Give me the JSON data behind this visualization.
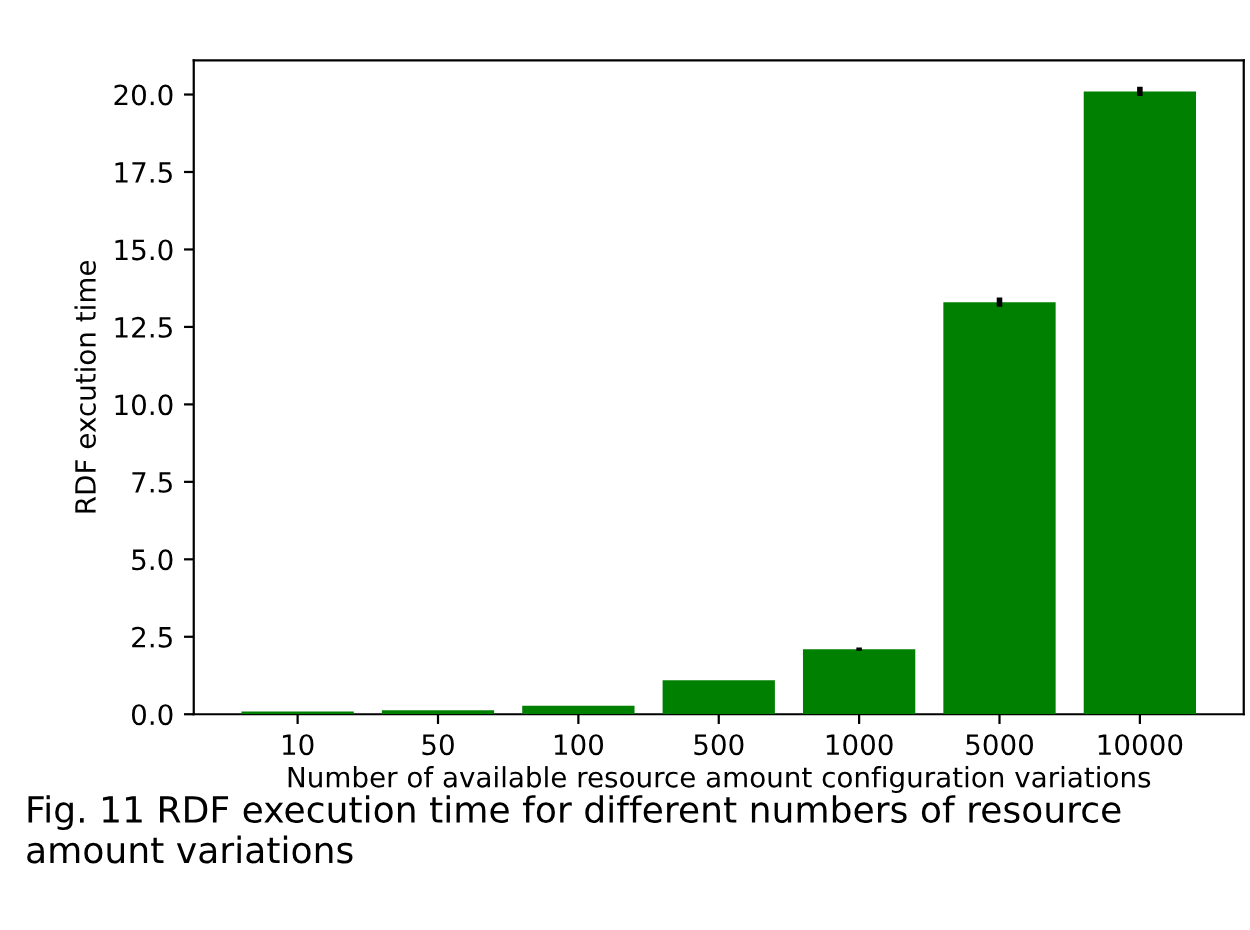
{
  "chart_data": {
    "type": "bar",
    "xlabel": "Number of available resource amount configuration variations",
    "ylabel": "RDF excution time",
    "categories": [
      "10",
      "50",
      "100",
      "500",
      "1000",
      "5000",
      "10000"
    ],
    "values": [
      0.09,
      0.13,
      0.27,
      1.1,
      2.1,
      13.3,
      20.1
    ],
    "errors": [
      null,
      null,
      null,
      null,
      0.05,
      0.15,
      0.15
    ],
    "color": "#008000",
    "ylim": [
      0,
      21.1
    ],
    "yticks": [
      {
        "value": 0,
        "label": "0.0"
      },
      {
        "value": 2.5,
        "label": "2.5"
      },
      {
        "value": 5,
        "label": "5.0"
      },
      {
        "value": 7.5,
        "label": "7.5"
      },
      {
        "value": 10,
        "label": "10.0"
      },
      {
        "value": 12.5,
        "label": "12.5"
      },
      {
        "value": 15,
        "label": "15.0"
      },
      {
        "value": 17.5,
        "label": "17.5"
      },
      {
        "value": 20,
        "label": "20.0"
      }
    ],
    "grid": false,
    "annotations": [
      "Fig. 11 RDF execution time for different numbers of resource amount variations"
    ]
  }
}
